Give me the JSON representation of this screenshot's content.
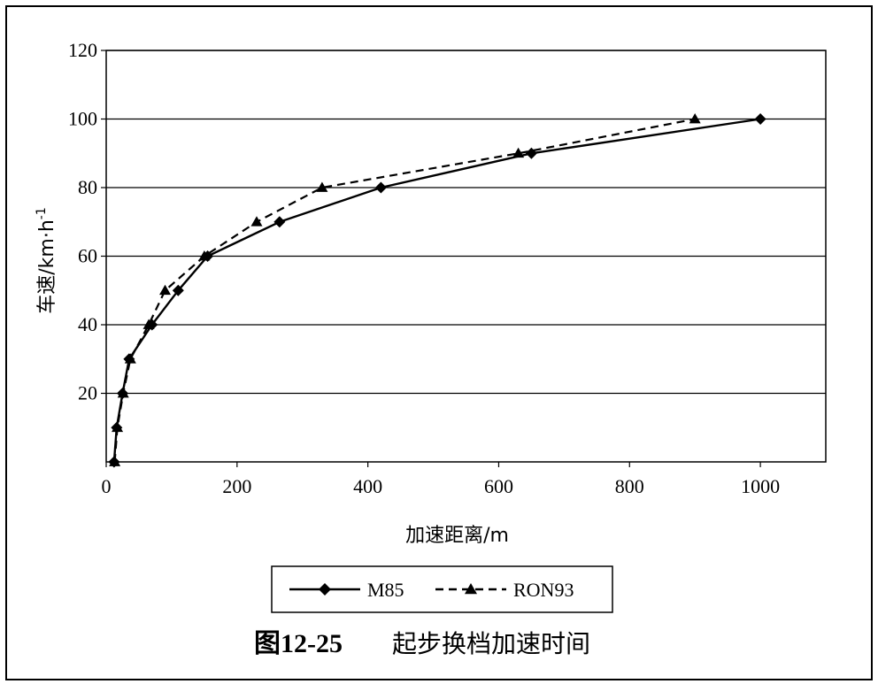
{
  "chart_data": {
    "type": "line",
    "xlabel": "加速距离/m",
    "ylabel_main": "车速/km·h",
    "ylabel_sup": "-1",
    "xlim": [
      0,
      1100
    ],
    "ylim": [
      0,
      120
    ],
    "x_ticks": [
      "0",
      "200",
      "400",
      "600",
      "800",
      "1000"
    ],
    "y_ticks": [
      "20",
      "40",
      "60",
      "80",
      "100",
      "120"
    ],
    "grid": "horizontal",
    "legend_position": "bottom",
    "series": [
      {
        "name": "M85",
        "line": "solid",
        "marker": "diamond",
        "x": [
          12,
          16,
          25,
          35,
          70,
          110,
          155,
          265,
          420,
          650,
          1000
        ],
        "y": [
          0,
          10,
          20,
          30,
          40,
          50,
          60,
          70,
          80,
          90,
          100
        ]
      },
      {
        "name": "RON93",
        "line": "dashed",
        "marker": "triangle",
        "x": [
          13,
          17,
          26,
          37,
          65,
          90,
          150,
          230,
          330,
          630,
          900
        ],
        "y": [
          0,
          10,
          20,
          30,
          40,
          50,
          60,
          70,
          80,
          90,
          100
        ]
      }
    ]
  },
  "caption": {
    "figure_number": "图12-25",
    "title": "起步换档加速时间"
  }
}
